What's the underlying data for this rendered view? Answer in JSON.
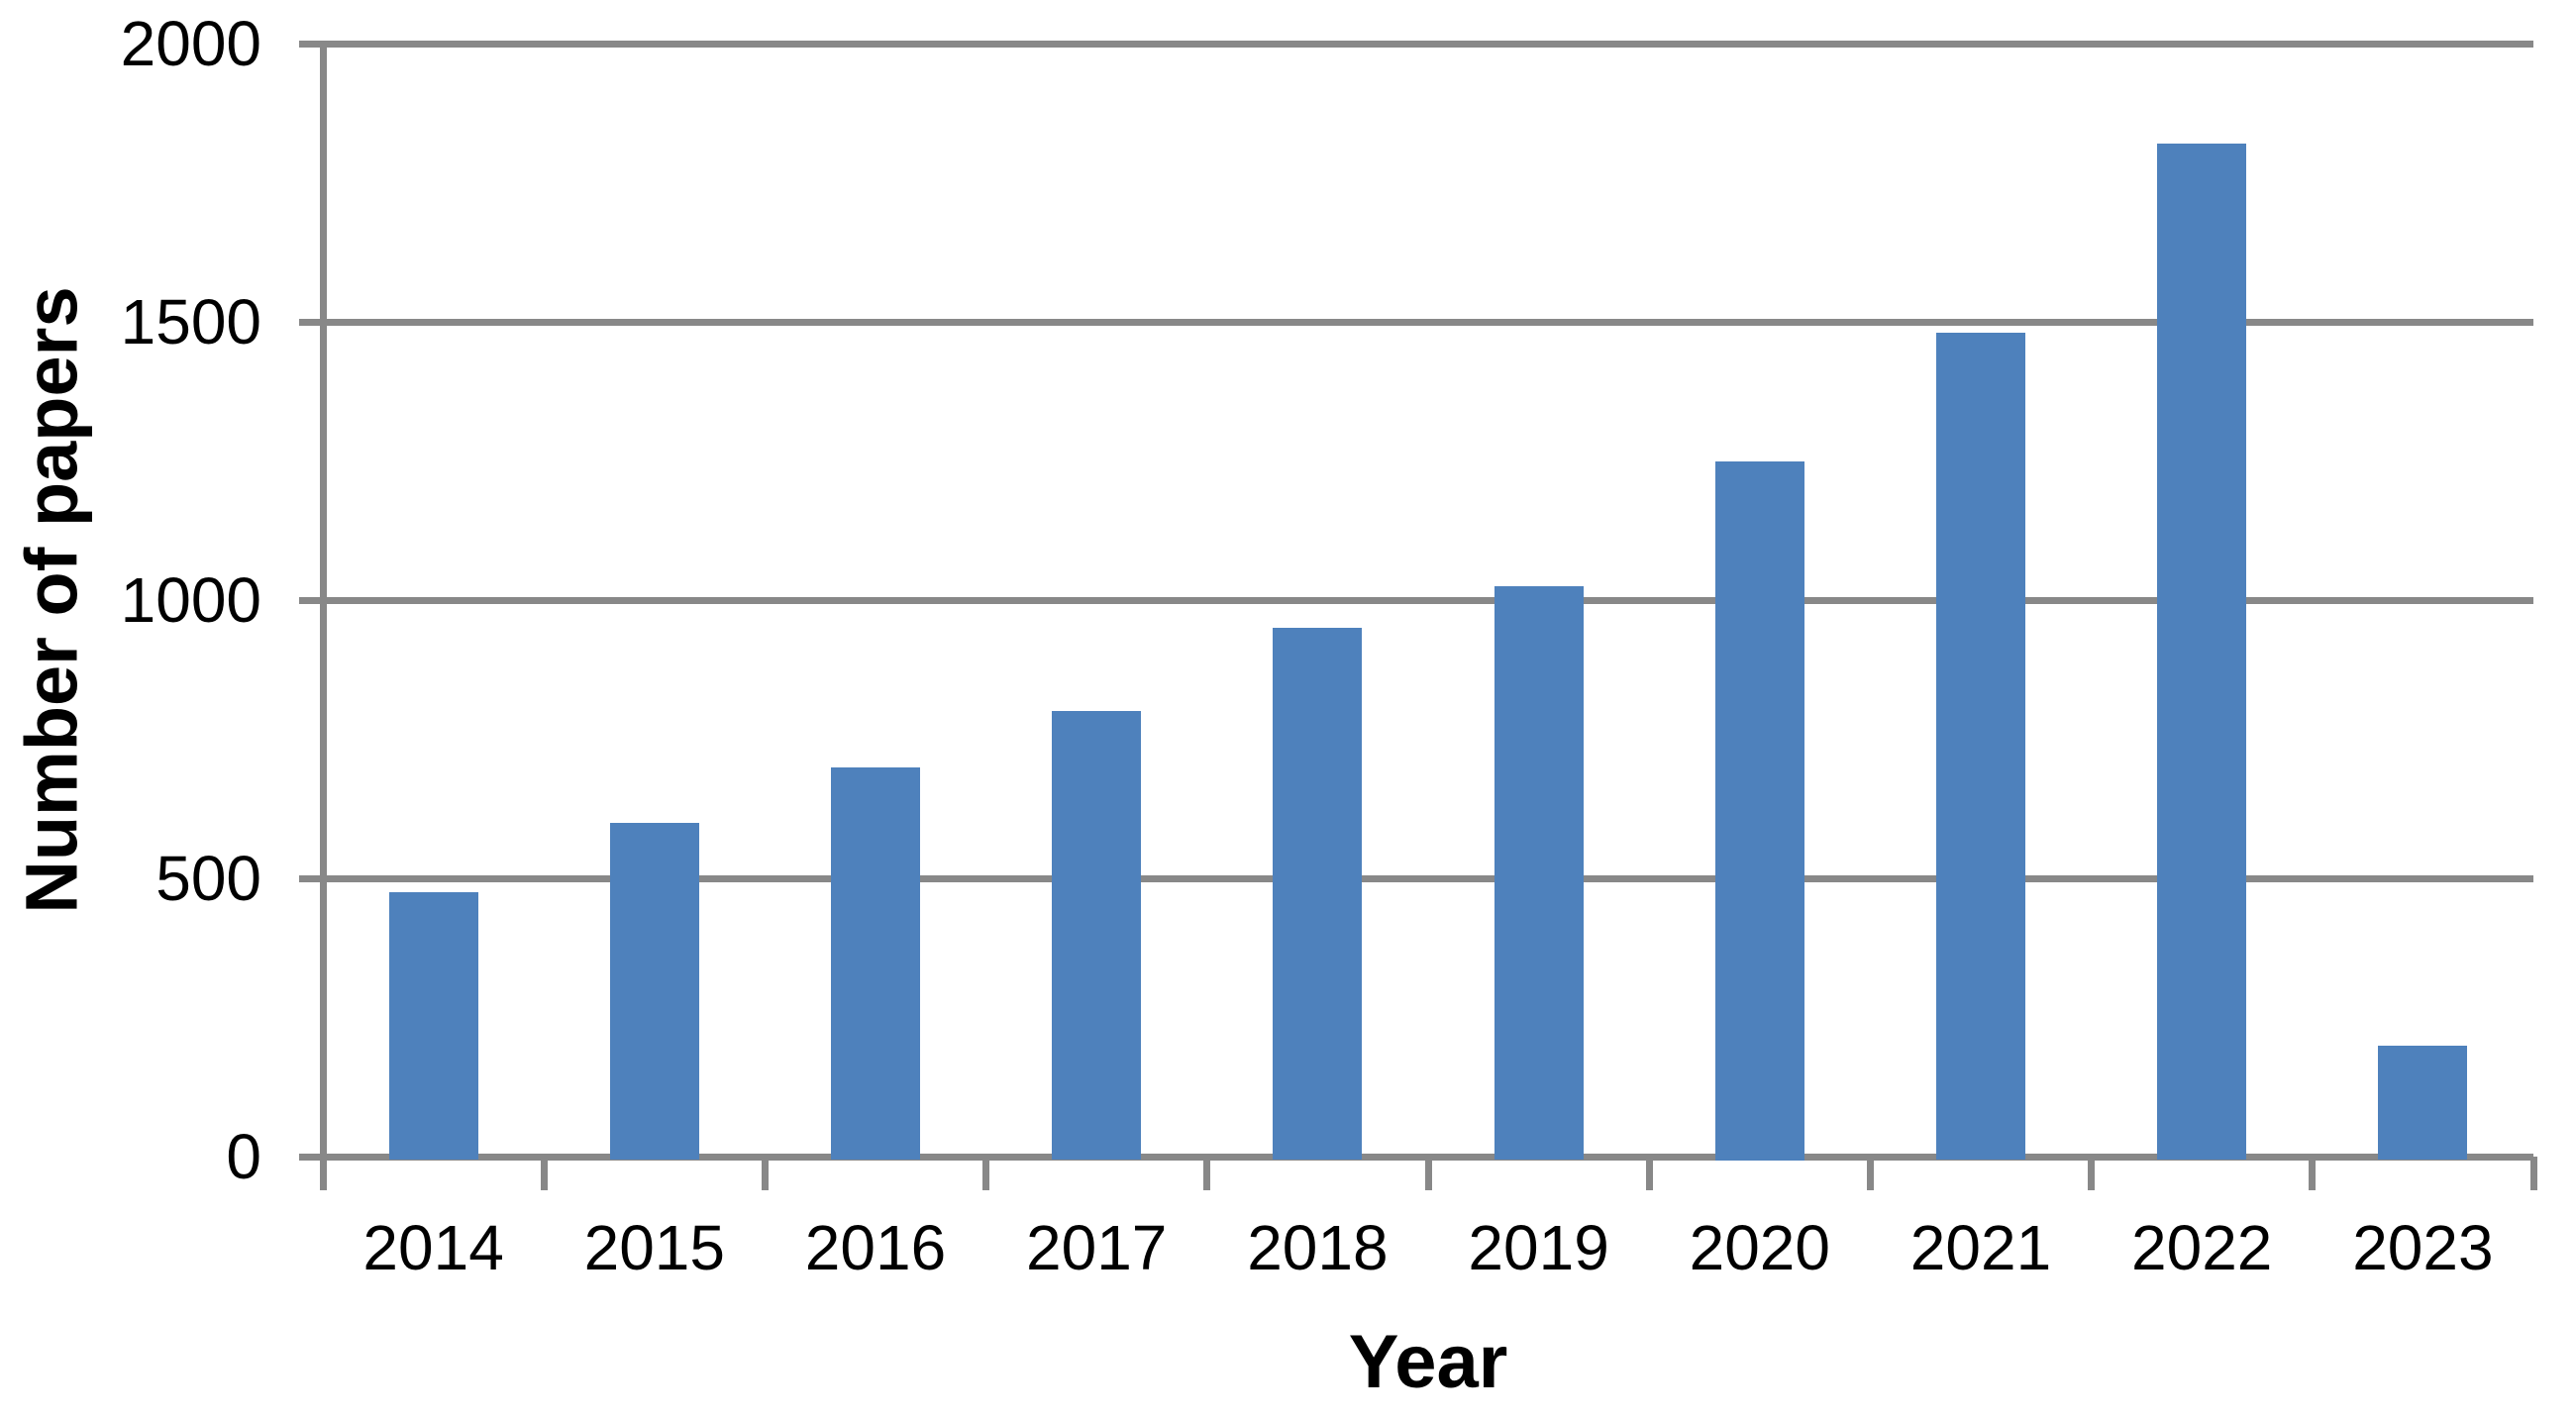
{
  "chart_data": {
    "type": "bar",
    "categories": [
      "2014",
      "2015",
      "2016",
      "2017",
      "2018",
      "2019",
      "2020",
      "2021",
      "2022",
      "2023"
    ],
    "values": [
      475,
      600,
      700,
      800,
      950,
      1025,
      1250,
      1480,
      1820,
      200
    ],
    "xlabel": "Year",
    "ylabel": "Number of papers",
    "ylim": [
      0,
      2000
    ],
    "yticks": [
      0,
      500,
      1000,
      1500,
      2000
    ],
    "ytick_labels": [
      "0",
      "500",
      "1000",
      "1500",
      "2000"
    ],
    "grid": "horizontal",
    "legend": "none"
  },
  "colors": {
    "bar": "#4E81BC",
    "grid": "#888888",
    "text": "#000000",
    "background": "#FFFFFF"
  }
}
